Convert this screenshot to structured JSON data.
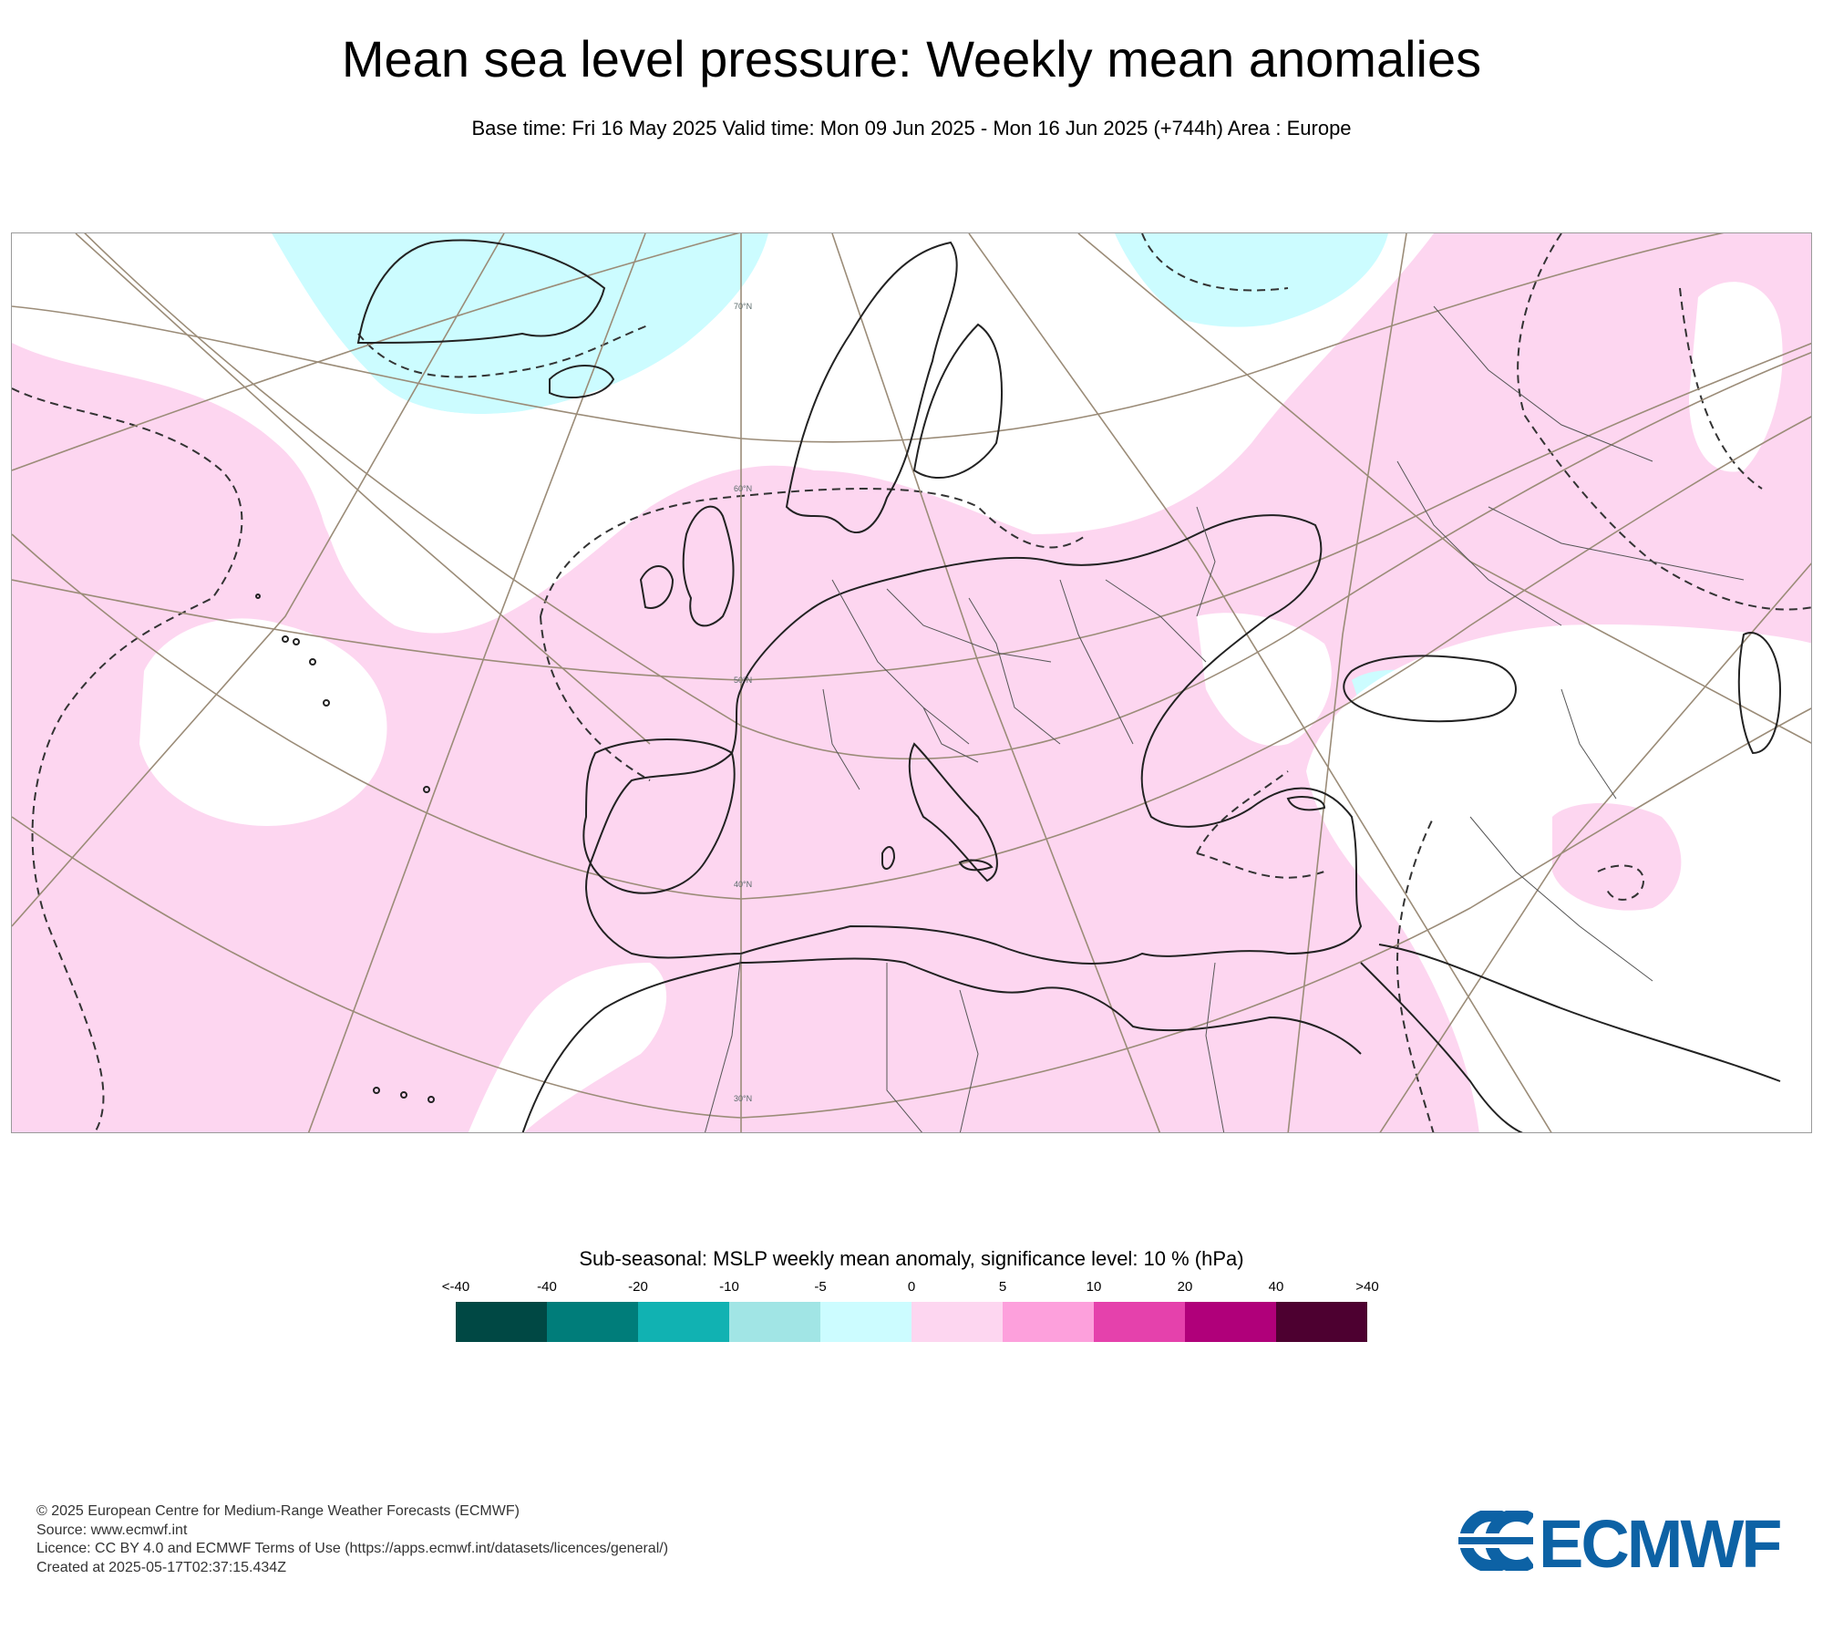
{
  "header": {
    "title": "Mean sea level pressure: Weekly mean anomalies",
    "subtitle": "Base time: Fri 16 May 2025 Valid time: Mon 09 Jun 2025 - Mon 16 Jun 2025 (+744h) Area : Europe"
  },
  "map": {
    "background_color": "#ffffff",
    "graticule_color": "#9b8c78",
    "coastline_color": "#222222",
    "latitude_labels": [
      "70°N",
      "60°N",
      "50°N",
      "40°N",
      "30°N"
    ],
    "anomaly_regions": [
      {
        "name": "greenland-iceland-negative",
        "category": "-5 to 0",
        "color": "#ccfcff"
      },
      {
        "name": "barents-negative",
        "category": "-5 to 0",
        "color": "#ccfcff"
      },
      {
        "name": "atlantic-europe-positive",
        "category": "0 to 5",
        "color": "#fdd6f0"
      },
      {
        "name": "russia-positive",
        "category": "0 to 5",
        "color": "#fdd6f0"
      },
      {
        "name": "azores-neutral",
        "category": "none",
        "color": "#ffffff"
      },
      {
        "name": "middle-east-neutral",
        "category": "none",
        "color": "#ffffff"
      }
    ]
  },
  "legend": {
    "title": "Sub-seasonal: MSLP weekly mean anomaly, significance level: 10 % (hPa)",
    "ticks": [
      "<-40",
      "-40",
      "-20",
      "-10",
      "-5",
      "0",
      "5",
      "10",
      "20",
      "40",
      ">40"
    ],
    "colors": [
      "#004844",
      "#007d7a",
      "#11b2b2",
      "#a1e5e5",
      "#ccfcff",
      "#fdd6f0",
      "#fda0dc",
      "#e541ac",
      "#b0007a",
      "#4d0030"
    ]
  },
  "footer": {
    "copyright": "© 2025 European Centre for Medium-Range Weather Forecasts (ECMWF)",
    "source": "Source: www.ecmwf.int",
    "licence": "Licence: CC BY 4.0 and ECMWF Terms of Use (https://apps.ecmwf.int/datasets/licences/general/)",
    "created": "Created at 2025-05-17T02:37:15.434Z"
  },
  "logo": {
    "text": "ECMWF",
    "color": "#0d62a5"
  }
}
